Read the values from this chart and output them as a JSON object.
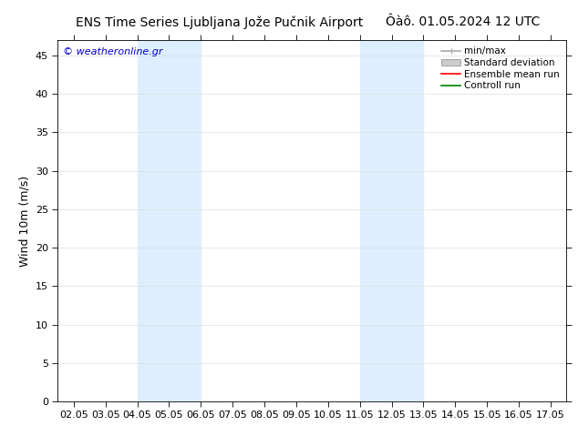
{
  "title_left": "ENS Time Series Ljubljana Jože Pučnik Airport",
  "title_right": "Ôàô. 01.05.2024 12 UTC",
  "ylabel": "Wind 10m (m/s)",
  "watermark": "© weatheronline.gr",
  "background_color": "#ffffff",
  "plot_bg_color": "#ffffff",
  "x_tick_labels": [
    "02.05",
    "03.05",
    "04.05",
    "05.05",
    "06.05",
    "07.05",
    "08.05",
    "09.05",
    "10.05",
    "11.05",
    "12.05",
    "13.05",
    "14.05",
    "15.05",
    "16.05",
    "17.05"
  ],
  "x_tick_values": [
    0,
    1,
    2,
    3,
    4,
    5,
    6,
    7,
    8,
    9,
    10,
    11,
    12,
    13,
    14,
    15
  ],
  "ylim": [
    0,
    47
  ],
  "yticks": [
    0,
    5,
    10,
    15,
    20,
    25,
    30,
    35,
    40,
    45
  ],
  "shaded_bands": [
    {
      "xstart": 2,
      "xend": 4,
      "color": "#ddeeff"
    },
    {
      "xstart": 9,
      "xend": 11,
      "color": "#ddeeff"
    }
  ],
  "legend_items": [
    {
      "label": "min/max",
      "color": "#aaaaaa",
      "style": "errorbar"
    },
    {
      "label": "Standard deviation",
      "color": "#cccccc",
      "style": "fill"
    },
    {
      "label": "Ensemble mean run",
      "color": "#ff0000",
      "style": "line"
    },
    {
      "label": "Controll run",
      "color": "#008000",
      "style": "line"
    }
  ],
  "grid_color": "#dddddd",
  "axis_color": "#000000",
  "font_color": "#000000",
  "watermark_color": "#0000cc",
  "title_fontsize": 10,
  "label_fontsize": 9,
  "tick_fontsize": 8,
  "legend_fontsize": 7.5,
  "watermark_fontsize": 8
}
